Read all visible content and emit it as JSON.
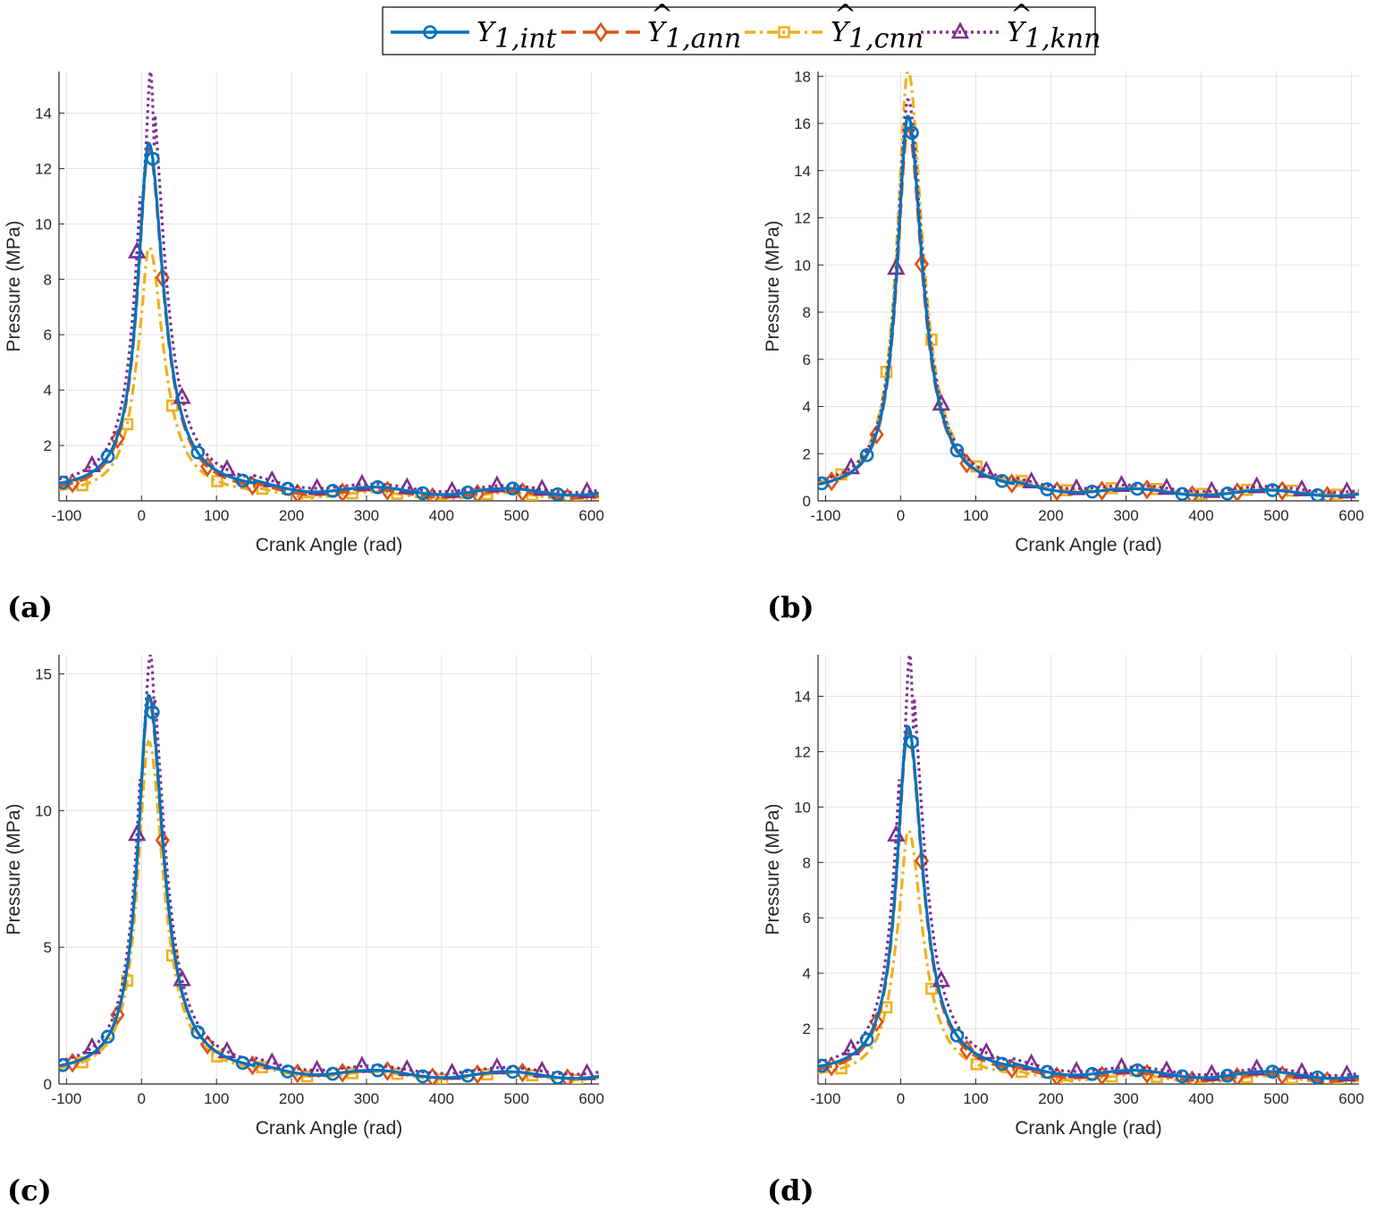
{
  "legend": {
    "entries": [
      {
        "key": "int",
        "base": "Y",
        "hat": false,
        "subscript": "1,int",
        "color": "#0072BD",
        "dash": "solid",
        "marker": "circle"
      },
      {
        "key": "ann",
        "base": "Y",
        "hat": true,
        "subscript": "1,ann",
        "color": "#D95319",
        "dash": "dashed",
        "marker": "diamond"
      },
      {
        "key": "cnn",
        "base": "Y",
        "hat": true,
        "subscript": "1,cnn",
        "color": "#EDB120",
        "dash": "dashdot",
        "marker": "square"
      },
      {
        "key": "knn",
        "base": "Y",
        "hat": true,
        "subscript": "1,knn",
        "color": "#7E2F8E",
        "dash": "dotted",
        "marker": "triangle"
      }
    ]
  },
  "chart_data": [
    {
      "type": "line",
      "panel_label": "(a)",
      "xlabel": "Crank Angle (rad)",
      "ylabel": "Pressure (MPa)",
      "xlim": [
        -110,
        610
      ],
      "ylim": [
        0,
        15.5
      ],
      "xticks": [
        -100,
        0,
        100,
        200,
        300,
        400,
        500,
        600
      ],
      "yticks": [
        2,
        4,
        6,
        8,
        10,
        12,
        14
      ],
      "grid": true,
      "peaks": {
        "int": 12.9,
        "ann": 12.7,
        "cnn": 9.2,
        "knn": 15.5
      },
      "tails": {
        "int": 0.3,
        "ann": 0.2,
        "cnn": 0.15,
        "knn": 0.4
      },
      "knn_spike": true,
      "cnn_dip": true
    },
    {
      "type": "line",
      "panel_label": "(b)",
      "xlabel": "Crank Angle (rad)",
      "ylabel": "Pressure (MPa)",
      "xlim": [
        -110,
        610
      ],
      "ylim": [
        0,
        18.2
      ],
      "xticks": [
        -100,
        0,
        100,
        200,
        300,
        400,
        500,
        600
      ],
      "yticks": [
        0,
        2,
        4,
        6,
        8,
        10,
        12,
        14,
        16,
        18
      ],
      "grid": true,
      "peaks": {
        "int": 16.3,
        "ann": 15.8,
        "cnn": 18.2,
        "knn": 17.0
      },
      "tails": {
        "int": 0.3,
        "ann": 0.3,
        "cnn": 0.35,
        "knn": 0.45
      },
      "knn_spike": false,
      "cnn_dip": false
    },
    {
      "type": "line",
      "panel_label": "(c)",
      "xlabel": "Crank Angle (rad)",
      "ylabel": "Pressure (MPa)",
      "xlim": [
        -110,
        610
      ],
      "ylim": [
        0,
        15.7
      ],
      "xticks": [
        -100,
        0,
        100,
        200,
        300,
        400,
        500,
        600
      ],
      "yticks": [
        0,
        5,
        10,
        15
      ],
      "grid": true,
      "peaks": {
        "int": 14.2,
        "ann": 14.0,
        "cnn": 12.5,
        "knn": 15.7
      },
      "tails": {
        "int": 0.3,
        "ann": 0.3,
        "cnn": 0.25,
        "knn": 0.45
      },
      "knn_spike": true,
      "cnn_dip": false
    },
    {
      "type": "line",
      "panel_label": "(d)",
      "xlabel": "Crank Angle (rad)",
      "ylabel": "Pressure (MPa)",
      "xlim": [
        -110,
        610
      ],
      "ylim": [
        0,
        15.5
      ],
      "xticks": [
        -100,
        0,
        100,
        200,
        300,
        400,
        500,
        600
      ],
      "yticks": [
        2,
        4,
        6,
        8,
        10,
        12,
        14
      ],
      "grid": true,
      "peaks": {
        "int": 12.9,
        "ann": 12.7,
        "cnn": 9.2,
        "knn": 15.5
      },
      "tails": {
        "int": 0.3,
        "ann": 0.2,
        "cnn": 0.15,
        "knn": 0.4
      },
      "knn_spike": true,
      "cnn_dip": true
    }
  ]
}
